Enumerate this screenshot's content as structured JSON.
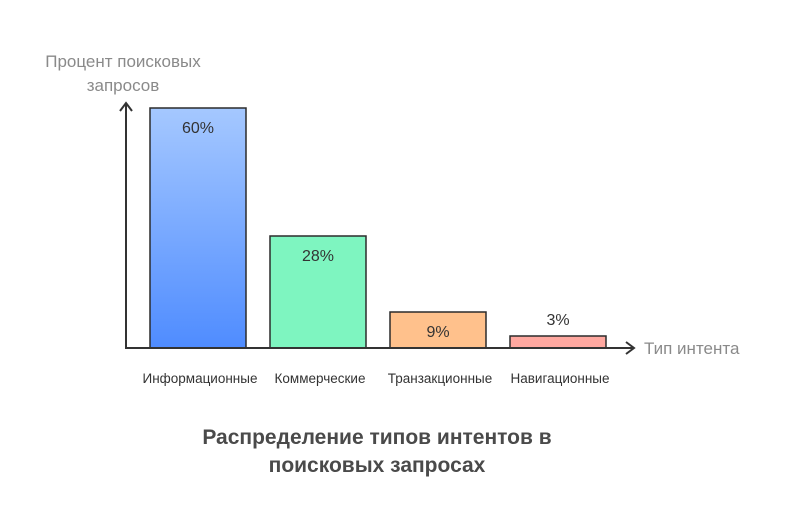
{
  "chart_data": {
    "type": "bar",
    "title_lines": [
      "Распределение типов интентов в",
      "поисковых запросах"
    ],
    "ylabel_lines": [
      "Процент поисковых",
      "запросов"
    ],
    "xlabel": "Тип интента",
    "categories": [
      "Информационные",
      "Коммерческие",
      "Транзакционные",
      "Навигационные"
    ],
    "values": [
      60,
      28,
      9,
      3
    ],
    "value_labels": [
      "60%",
      "28%",
      "9%",
      "3%"
    ],
    "unit": "%",
    "ylim": [
      0,
      60
    ],
    "grid": false,
    "legend": "none",
    "colors": {
      "bars": [
        {
          "top": "#a5c8ff",
          "bottom": "#4f8cff"
        },
        {
          "top": "#7ef5c0",
          "bottom": "#7ef5c0"
        },
        {
          "top": "#ffc18c",
          "bottom": "#ffc18c"
        },
        {
          "top": "#ffa8a0",
          "bottom": "#ffa8a0"
        }
      ],
      "outline": "#2b2b2b",
      "axis": "#333333"
    }
  }
}
